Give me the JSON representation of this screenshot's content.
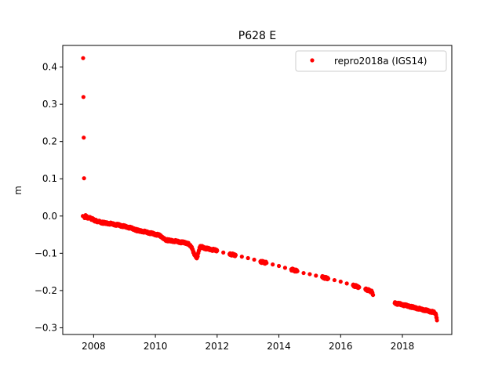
{
  "chart_data": {
    "type": "scatter",
    "title": "P628 E",
    "xlabel": "",
    "ylabel": "m",
    "xlim": [
      2007.0,
      2019.6
    ],
    "ylim": [
      -0.318,
      0.458
    ],
    "xticks": [
      2008,
      2010,
      2012,
      2014,
      2016,
      2018
    ],
    "xtick_labels": [
      "2008",
      "2010",
      "2012",
      "2014",
      "2016",
      "2018"
    ],
    "yticks": [
      0.4,
      0.3,
      0.2,
      0.1,
      0.0,
      -0.1,
      -0.2,
      -0.3
    ],
    "ytick_labels": [
      "0.4",
      "0.3",
      "0.2",
      "0.1",
      "0.0",
      "−0.1",
      "−0.2",
      "−0.3"
    ],
    "grid": false,
    "legend_position": "top-right",
    "series": [
      {
        "name": "repro2018a (IGS14)",
        "color": "#ff0000",
        "marker": "circle",
        "x": [
          2007.65,
          2007.7,
          2007.75,
          2007.8,
          2007.85,
          2007.9,
          2007.95,
          2008.0,
          2008.05,
          2008.1,
          2008.15,
          2008.2,
          2008.3,
          2008.4,
          2008.5,
          2008.6,
          2008.7,
          2008.8,
          2008.9,
          2009.0,
          2009.1,
          2009.2,
          2009.3,
          2009.4,
          2009.5,
          2009.6,
          2009.7,
          2009.8,
          2009.9,
          2010.0,
          2010.1,
          2010.2,
          2010.25,
          2010.3,
          2010.4,
          2010.5,
          2010.6,
          2010.7,
          2010.8,
          2010.9,
          2011.0,
          2011.05,
          2011.1,
          2011.15,
          2011.2,
          2011.25,
          2011.3,
          2011.35,
          2011.4,
          2011.45,
          2011.5,
          2011.6,
          2011.7,
          2011.8,
          2011.9,
          2012.0,
          2012.2,
          2012.4,
          2012.6,
          2012.8,
          2013.0,
          2013.2,
          2013.4,
          2013.6,
          2013.8,
          2014.0,
          2014.2,
          2014.4,
          2014.6,
          2014.8,
          2015.0,
          2015.2,
          2015.4,
          2015.6,
          2015.8,
          2016.0,
          2016.2,
          2016.4,
          2016.6,
          2016.8,
          2016.95,
          2017.02,
          2017.05,
          2017.75,
          2017.8,
          2017.9,
          2018.0,
          2018.1,
          2018.2,
          2018.3,
          2018.4,
          2018.5,
          2018.6,
          2018.7,
          2018.8,
          2018.9,
          2019.0,
          2019.05,
          2019.08,
          2019.1,
          2019.12,
          2007.66
        ],
        "y": [
          0.0,
          -0.003,
          0.0,
          -0.005,
          -0.003,
          -0.006,
          -0.008,
          -0.01,
          -0.012,
          -0.014,
          -0.015,
          -0.016,
          -0.018,
          -0.019,
          -0.02,
          -0.021,
          -0.023,
          -0.024,
          -0.026,
          -0.028,
          -0.03,
          -0.032,
          -0.035,
          -0.038,
          -0.04,
          -0.041,
          -0.043,
          -0.045,
          -0.047,
          -0.049,
          -0.051,
          -0.055,
          -0.06,
          -0.063,
          -0.065,
          -0.066,
          -0.067,
          -0.068,
          -0.07,
          -0.071,
          -0.072,
          -0.074,
          -0.077,
          -0.081,
          -0.09,
          -0.1,
          -0.108,
          -0.112,
          -0.095,
          -0.082,
          -0.083,
          -0.086,
          -0.088,
          -0.09,
          -0.091,
          -0.093,
          -0.098,
          -0.102,
          -0.105,
          -0.109,
          -0.113,
          -0.117,
          -0.122,
          -0.126,
          -0.13,
          -0.134,
          -0.139,
          -0.143,
          -0.148,
          -0.153,
          -0.156,
          -0.16,
          -0.164,
          -0.168,
          -0.172,
          -0.176,
          -0.181,
          -0.186,
          -0.191,
          -0.196,
          -0.201,
          -0.204,
          -0.212,
          -0.234,
          -0.235,
          -0.236,
          -0.238,
          -0.24,
          -0.242,
          -0.244,
          -0.246,
          -0.248,
          -0.25,
          -0.252,
          -0.254,
          -0.256,
          -0.258,
          -0.26,
          -0.262,
          -0.272,
          -0.28,
          0.424
        ]
      }
    ]
  }
}
